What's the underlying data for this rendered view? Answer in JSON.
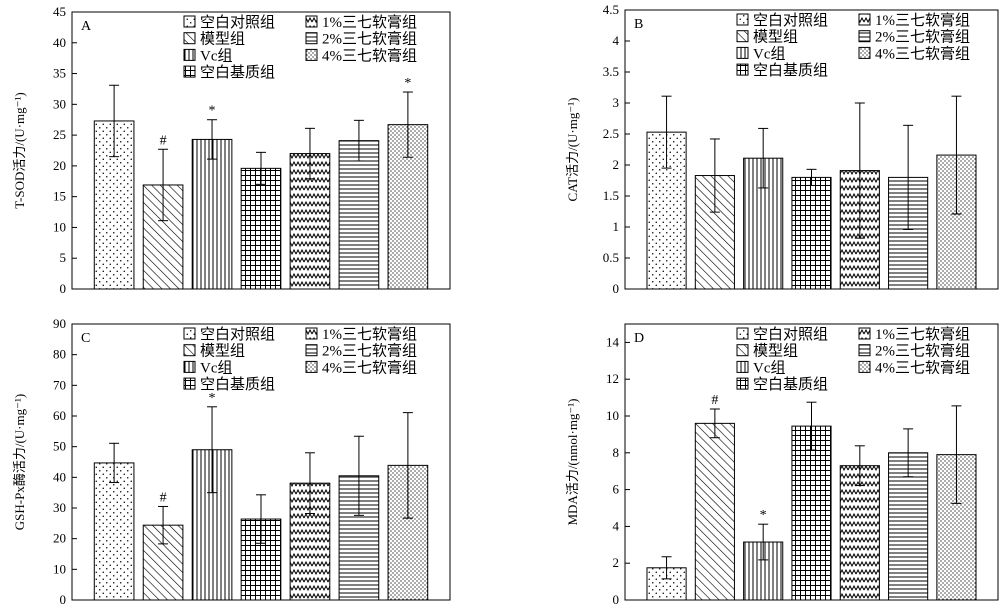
{
  "figure_name": "antioxidant-enzyme-bar-panels",
  "legend_labels": [
    "空白对照组",
    "模型组",
    "Vc组",
    "空白基质组",
    "1%三七软膏组",
    "2%三七软膏组",
    "4%三七软膏组"
  ],
  "chart_data": [
    {
      "type": "bar",
      "panel": "A",
      "title": "",
      "xlabel": "",
      "ylabel": "T-SOD活力/(U·mg⁻¹)",
      "ylim": [
        0,
        45
      ],
      "yticks": [
        0,
        5,
        10,
        15,
        20,
        25,
        30,
        35,
        40,
        45
      ],
      "categories": [
        "空白对照组",
        "模型组",
        "Vc组",
        "空白基质组",
        "1%三七软膏组",
        "2%三七软膏组",
        "4%三七软膏组"
      ],
      "values": [
        27.3,
        16.9,
        24.3,
        19.6,
        22.0,
        24.1,
        26.7
      ],
      "errors": [
        5.8,
        5.8,
        3.2,
        2.6,
        4.1,
        3.3,
        5.3
      ],
      "marks": [
        "",
        "#",
        "*",
        "",
        "",
        "",
        "*"
      ],
      "legend": "top"
    },
    {
      "type": "bar",
      "panel": "B",
      "title": "",
      "xlabel": "",
      "ylabel": "CAT活力/(U·mg⁻¹)",
      "ylim": [
        0,
        4.5
      ],
      "yticks": [
        "0",
        "0.5",
        "1",
        "1.5",
        "2",
        "2.5",
        "3",
        "3.5",
        "4",
        "4.5"
      ],
      "categories": [
        "空白对照组",
        "模型组",
        "Vc组",
        "空白基质组",
        "1%三七软膏组",
        "2%三七软膏组",
        "4%三七软膏组"
      ],
      "values": [
        2.53,
        1.83,
        2.11,
        1.8,
        1.91,
        1.8,
        2.16
      ],
      "errors": [
        0.58,
        0.59,
        0.48,
        0.13,
        1.09,
        0.84,
        0.95
      ],
      "marks": [
        "",
        "",
        "",
        "",
        "",
        "",
        ""
      ],
      "legend": "top"
    },
    {
      "type": "bar",
      "panel": "C",
      "title": "",
      "xlabel": "",
      "ylabel": "GSH-Px酶活力/(U·mg⁻¹)",
      "ylim": [
        0,
        90
      ],
      "yticks": [
        0,
        10,
        20,
        30,
        40,
        50,
        60,
        70,
        80,
        90
      ],
      "categories": [
        "空白对照组",
        "模型组",
        "Vc组",
        "空白基质组",
        "1%三七软膏组",
        "2%三七软膏组",
        "4%三七软膏组"
      ],
      "values": [
        44.7,
        24.4,
        49.0,
        26.4,
        38.1,
        40.5,
        43.9
      ],
      "errors": [
        6.4,
        6.1,
        14.0,
        7.9,
        9.9,
        12.9,
        17.2
      ],
      "marks": [
        "",
        "#",
        "*",
        "",
        "",
        "",
        ""
      ],
      "legend": "top"
    },
    {
      "type": "bar",
      "panel": "D",
      "title": "",
      "xlabel": "",
      "ylabel": "MDA活力/(nmol·mg⁻¹)",
      "ylim": [
        0,
        15
      ],
      "yticks": [
        0,
        2,
        4,
        6,
        8,
        10,
        12,
        14
      ],
      "categories": [
        "空白对照组",
        "模型组",
        "Vc组",
        "空白基质组",
        "1%三七软膏组",
        "2%三七软膏组",
        "4%三七软膏组"
      ],
      "values": [
        1.75,
        9.6,
        3.15,
        9.45,
        7.3,
        8.0,
        7.9
      ],
      "errors": [
        0.6,
        0.78,
        0.97,
        1.3,
        1.08,
        1.3,
        2.65
      ],
      "marks": [
        "",
        "#",
        "*",
        "",
        "",
        "",
        ""
      ],
      "legend": "top"
    }
  ]
}
